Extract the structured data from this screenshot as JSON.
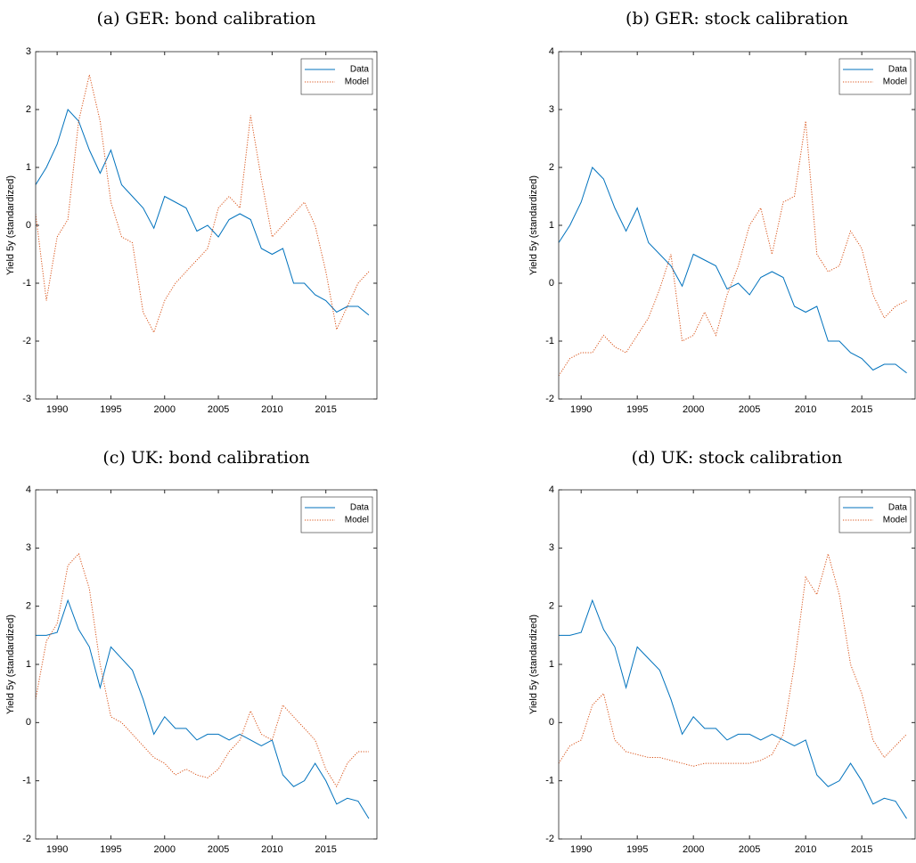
{
  "chart_data": [
    {
      "type": "line",
      "title": "(a) GER: bond calibration",
      "ylabel": "Yield 5y (standardized)",
      "x": [
        1988,
        1989,
        1990,
        1991,
        1992,
        1993,
        1994,
        1995,
        1996,
        1997,
        1998,
        1999,
        2000,
        2001,
        2002,
        2003,
        2004,
        2005,
        2006,
        2007,
        2008,
        2009,
        2010,
        2011,
        2012,
        2013,
        2014,
        2015,
        2016,
        2017,
        2018,
        2019
      ],
      "series": [
        {
          "name": "Data",
          "color": "#0072bd",
          "linestyle": "solid",
          "values": [
            0.7,
            1.0,
            1.4,
            2.0,
            1.8,
            1.3,
            0.9,
            1.3,
            0.7,
            0.5,
            0.3,
            -0.05,
            0.5,
            0.4,
            0.3,
            -0.1,
            0.0,
            -0.2,
            0.1,
            0.2,
            0.1,
            -0.4,
            -0.5,
            -0.4,
            -1.0,
            -1.0,
            -1.2,
            -1.3,
            -1.5,
            -1.4,
            -1.4,
            -1.55
          ]
        },
        {
          "name": "Model",
          "color": "#d95319",
          "linestyle": "dotted",
          "values": [
            0.2,
            -1.3,
            -0.2,
            0.1,
            1.8,
            2.6,
            1.8,
            0.4,
            -0.2,
            -0.3,
            -1.5,
            -1.85,
            -1.3,
            -1.0,
            -0.8,
            -0.6,
            -0.4,
            0.3,
            0.5,
            0.3,
            1.9,
            0.8,
            -0.2,
            0.0,
            0.2,
            0.4,
            0.0,
            -0.8,
            -1.8,
            -1.4,
            -1.0,
            -0.8
          ]
        }
      ],
      "xlim": [
        1988,
        2019.75
      ],
      "ylim": [
        -3,
        3
      ],
      "xticks": [
        1990,
        1995,
        2000,
        2005,
        2010,
        2015
      ],
      "yticks": [
        -3,
        -2,
        -1,
        0,
        1,
        2,
        3
      ],
      "legend": "upper right"
    },
    {
      "type": "line",
      "title": "(b) GER: stock calibration",
      "ylabel": "Yield 5y (standardized)",
      "x": [
        1988,
        1989,
        1990,
        1991,
        1992,
        1993,
        1994,
        1995,
        1996,
        1997,
        1998,
        1999,
        2000,
        2001,
        2002,
        2003,
        2004,
        2005,
        2006,
        2007,
        2008,
        2009,
        2010,
        2011,
        2012,
        2013,
        2014,
        2015,
        2016,
        2017,
        2018,
        2019
      ],
      "series": [
        {
          "name": "Data",
          "color": "#0072bd",
          "linestyle": "solid",
          "values": [
            0.7,
            1.0,
            1.4,
            2.0,
            1.8,
            1.3,
            0.9,
            1.3,
            0.7,
            0.5,
            0.3,
            -0.05,
            0.5,
            0.4,
            0.3,
            -0.1,
            0.0,
            -0.2,
            0.1,
            0.2,
            0.1,
            -0.4,
            -0.5,
            -0.4,
            -1.0,
            -1.0,
            -1.2,
            -1.3,
            -1.5,
            -1.4,
            -1.4,
            -1.55
          ]
        },
        {
          "name": "Model",
          "color": "#d95319",
          "linestyle": "dotted",
          "values": [
            -1.6,
            -1.3,
            -1.2,
            -1.2,
            -0.9,
            -1.1,
            -1.2,
            -0.9,
            -0.6,
            -0.1,
            0.5,
            -1.0,
            -0.9,
            -0.5,
            -0.9,
            -0.2,
            0.3,
            1.0,
            1.3,
            0.5,
            1.4,
            1.5,
            2.8,
            0.5,
            0.2,
            0.3,
            0.9,
            0.6,
            -0.2,
            -0.6,
            -0.4,
            -0.3
          ]
        }
      ],
      "xlim": [
        1988,
        2019.75
      ],
      "ylim": [
        -2,
        4
      ],
      "xticks": [
        1990,
        1995,
        2000,
        2005,
        2010,
        2015
      ],
      "yticks": [
        -2,
        -1,
        0,
        1,
        2,
        3,
        4
      ],
      "legend": "upper right"
    },
    {
      "type": "line",
      "title": "(c) UK: bond calibration",
      "ylabel": "Yield 5y (standardized)",
      "x": [
        1988,
        1989,
        1990,
        1991,
        1992,
        1993,
        1994,
        1995,
        1996,
        1997,
        1998,
        1999,
        2000,
        2001,
        2002,
        2003,
        2004,
        2005,
        2006,
        2007,
        2008,
        2009,
        2010,
        2011,
        2012,
        2013,
        2014,
        2015,
        2016,
        2017,
        2018,
        2019
      ],
      "series": [
        {
          "name": "Data",
          "color": "#0072bd",
          "linestyle": "solid",
          "values": [
            1.5,
            1.5,
            1.55,
            2.1,
            1.6,
            1.3,
            0.6,
            1.3,
            1.1,
            0.9,
            0.4,
            -0.2,
            0.1,
            -0.1,
            -0.1,
            -0.3,
            -0.2,
            -0.2,
            -0.3,
            -0.2,
            -0.3,
            -0.4,
            -0.3,
            -0.9,
            -1.1,
            -1.0,
            -0.7,
            -1.0,
            -1.4,
            -1.3,
            -1.35,
            -1.65
          ]
        },
        {
          "name": "Model",
          "color": "#d95319",
          "linestyle": "dotted",
          "values": [
            0.4,
            1.4,
            1.7,
            2.7,
            2.9,
            2.3,
            1.0,
            0.1,
            0.0,
            -0.2,
            -0.4,
            -0.6,
            -0.7,
            -0.9,
            -0.8,
            -0.9,
            -0.95,
            -0.8,
            -0.5,
            -0.3,
            0.2,
            -0.2,
            -0.3,
            0.3,
            0.1,
            -0.1,
            -0.3,
            -0.8,
            -1.1,
            -0.7,
            -0.5,
            -0.5
          ]
        }
      ],
      "xlim": [
        1988,
        2019.75
      ],
      "ylim": [
        -2,
        4
      ],
      "xticks": [
        1990,
        1995,
        2000,
        2005,
        2010,
        2015
      ],
      "yticks": [
        -2,
        -1,
        0,
        1,
        2,
        3,
        4
      ],
      "legend": "upper right"
    },
    {
      "type": "line",
      "title": "(d) UK: stock calibration",
      "ylabel": "Yield 5y (standardized)",
      "x": [
        1988,
        1989,
        1990,
        1991,
        1992,
        1993,
        1994,
        1995,
        1996,
        1997,
        1998,
        1999,
        2000,
        2001,
        2002,
        2003,
        2004,
        2005,
        2006,
        2007,
        2008,
        2009,
        2010,
        2011,
        2012,
        2013,
        2014,
        2015,
        2016,
        2017,
        2018,
        2019
      ],
      "series": [
        {
          "name": "Data",
          "color": "#0072bd",
          "linestyle": "solid",
          "values": [
            1.5,
            1.5,
            1.55,
            2.1,
            1.6,
            1.3,
            0.6,
            1.3,
            1.1,
            0.9,
            0.4,
            -0.2,
            0.1,
            -0.1,
            -0.1,
            -0.3,
            -0.2,
            -0.2,
            -0.3,
            -0.2,
            -0.3,
            -0.4,
            -0.3,
            -0.9,
            -1.1,
            -1.0,
            -0.7,
            -1.0,
            -1.4,
            -1.3,
            -1.35,
            -1.65
          ]
        },
        {
          "name": "Model",
          "color": "#d95319",
          "linestyle": "dotted",
          "values": [
            -0.7,
            -0.4,
            -0.3,
            0.3,
            0.5,
            -0.3,
            -0.5,
            -0.55,
            -0.6,
            -0.6,
            -0.65,
            -0.7,
            -0.75,
            -0.7,
            -0.7,
            -0.7,
            -0.7,
            -0.7,
            -0.65,
            -0.55,
            -0.2,
            1.0,
            2.5,
            2.2,
            2.9,
            2.2,
            1.0,
            0.5,
            -0.3,
            -0.6,
            -0.4,
            -0.2
          ]
        }
      ],
      "xlim": [
        1988,
        2019.75
      ],
      "ylim": [
        -2,
        4
      ],
      "xticks": [
        1990,
        1995,
        2000,
        2005,
        2010,
        2015
      ],
      "yticks": [
        -2,
        -1,
        0,
        1,
        2,
        3,
        4
      ],
      "legend": "upper right"
    }
  ]
}
